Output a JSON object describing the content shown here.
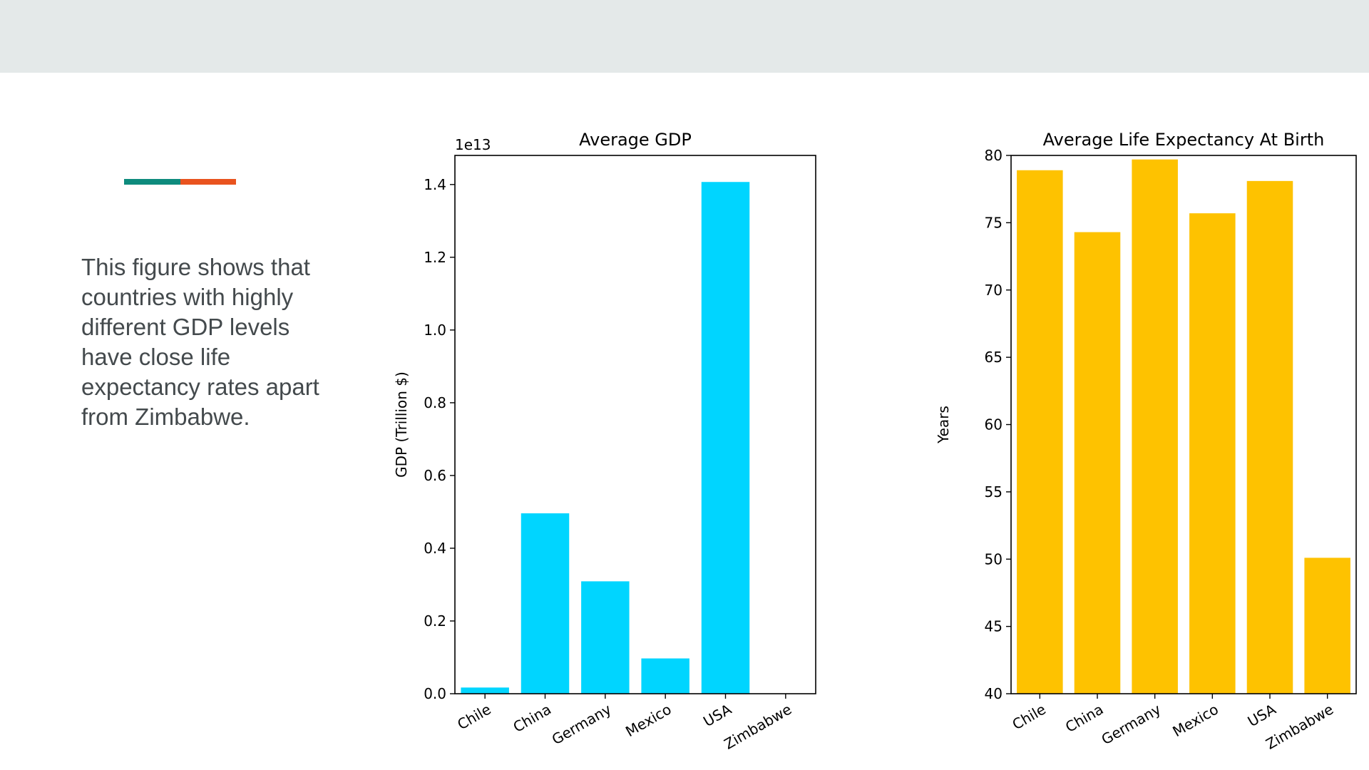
{
  "slide": {
    "band_color": "#e4e9e9",
    "accent_colors": [
      "#0e8b7d",
      "#e9531f"
    ],
    "caption": "This figure shows that countries with highly different GDP levels have close life expectancy rates apart from Zimbabwe."
  },
  "chart_data": [
    {
      "type": "bar",
      "title": "Average GDP",
      "xlabel": "",
      "ylabel": "GDP (Trillion $)",
      "offset_text": "1e13",
      "categories": [
        "Chile",
        "China",
        "Germany",
        "Mexico",
        "USA",
        "Zimbabwe"
      ],
      "values": [
        170000000000.0,
        4960000000000.0,
        3090000000000.0,
        970000000000.0,
        14070000000000.0,
        9000000000.0
      ],
      "ylim": [
        0,
        14800000000000.0
      ],
      "yticks": [
        0,
        2000000000000.0,
        4000000000000.0,
        6000000000000.0,
        8000000000000.0,
        10000000000000.0,
        12000000000000.0,
        14000000000000.0
      ],
      "ytick_labels": [
        "0.0",
        "0.2",
        "0.4",
        "0.6",
        "0.8",
        "1.0",
        "1.2",
        "1.4"
      ],
      "color": "#00d5ff",
      "grid": false
    },
    {
      "type": "bar",
      "title": "Average Life Expectancy At Birth",
      "xlabel": "",
      "ylabel": "Years",
      "categories": [
        "Chile",
        "China",
        "Germany",
        "Mexico",
        "USA",
        "Zimbabwe"
      ],
      "values": [
        78.9,
        74.3,
        79.7,
        75.7,
        78.1,
        50.1
      ],
      "ylim": [
        40,
        80
      ],
      "yticks": [
        40,
        45,
        50,
        55,
        60,
        65,
        70,
        75,
        80
      ],
      "ytick_labels": [
        "40",
        "45",
        "50",
        "55",
        "60",
        "65",
        "70",
        "75",
        "80"
      ],
      "color": "#fec200",
      "grid": false
    }
  ]
}
